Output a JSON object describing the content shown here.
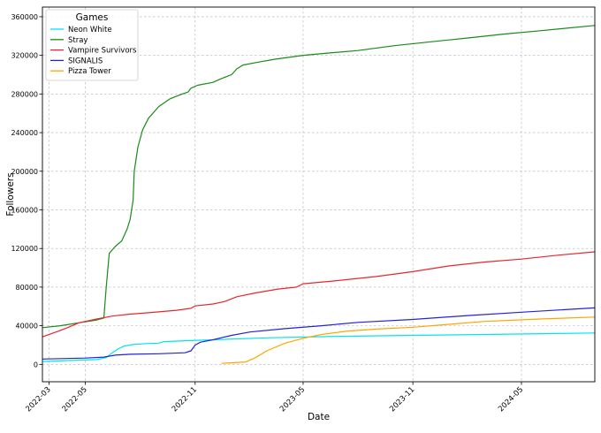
{
  "chart_data": {
    "type": "line",
    "xlabel": "Date",
    "ylabel": "Followers",
    "xlim": [
      "2022-02-18",
      "2024-09-01"
    ],
    "ylim": [
      -18000,
      370000
    ],
    "x_ticks": [
      "2022-03",
      "2022-05",
      "2022-11",
      "2023-05",
      "2023-11",
      "2024-05"
    ],
    "y_ticks": [
      "0",
      "40000",
      "80000",
      "120000",
      "160000",
      "200000",
      "240000",
      "280000",
      "320000",
      "360000"
    ],
    "grid": true,
    "legend": {
      "title": "Games",
      "placement": "top-left"
    },
    "series": [
      {
        "name": "Neon White",
        "color": "#00e5ee",
        "points": [
          [
            "2022-02-18",
            3000
          ],
          [
            "2022-04-01",
            4000
          ],
          [
            "2022-05-20",
            5000
          ],
          [
            "2022-06-05",
            7000
          ],
          [
            "2022-06-15",
            12000
          ],
          [
            "2022-06-25",
            16000
          ],
          [
            "2022-07-05",
            19000
          ],
          [
            "2022-07-20",
            20500
          ],
          [
            "2022-08-10",
            21500
          ],
          [
            "2022-09-01",
            22000
          ],
          [
            "2022-09-10",
            23500
          ],
          [
            "2022-10-15",
            24500
          ],
          [
            "2022-12-01",
            25500
          ],
          [
            "2023-03-01",
            27500
          ],
          [
            "2023-07-01",
            29000
          ],
          [
            "2023-11-01",
            30000
          ],
          [
            "2024-03-01",
            31000
          ],
          [
            "2024-07-01",
            32000
          ],
          [
            "2024-09-01",
            32500
          ]
        ]
      },
      {
        "name": "Stray",
        "color": "#1a8a1a",
        "points": [
          [
            "2022-02-18",
            38000
          ],
          [
            "2022-03-20",
            40000
          ],
          [
            "2022-04-20",
            43000
          ],
          [
            "2022-05-20",
            46000
          ],
          [
            "2022-06-01",
            48000
          ],
          [
            "2022-06-05",
            80000
          ],
          [
            "2022-06-10",
            115000
          ],
          [
            "2022-06-20",
            122000
          ],
          [
            "2022-07-01",
            128000
          ],
          [
            "2022-07-10",
            140000
          ],
          [
            "2022-07-15",
            150000
          ],
          [
            "2022-07-20",
            170000
          ],
          [
            "2022-07-22",
            200000
          ],
          [
            "2022-07-28",
            225000
          ],
          [
            "2022-08-05",
            243000
          ],
          [
            "2022-08-15",
            255000
          ],
          [
            "2022-09-01",
            267000
          ],
          [
            "2022-09-20",
            275000
          ],
          [
            "2022-10-10",
            280000
          ],
          [
            "2022-10-20",
            282000
          ],
          [
            "2022-10-25",
            286000
          ],
          [
            "2022-11-05",
            289000
          ],
          [
            "2022-12-01",
            292000
          ],
          [
            "2022-12-15",
            296000
          ],
          [
            "2023-01-01",
            300000
          ],
          [
            "2023-01-10",
            306000
          ],
          [
            "2023-01-20",
            310000
          ],
          [
            "2023-02-15",
            313000
          ],
          [
            "2023-03-15",
            316000
          ],
          [
            "2023-05-01",
            320000
          ],
          [
            "2023-06-15",
            322500
          ],
          [
            "2023-08-01",
            325000
          ],
          [
            "2023-10-01",
            330000
          ],
          [
            "2023-12-01",
            334000
          ],
          [
            "2024-02-01",
            338000
          ],
          [
            "2024-04-01",
            342000
          ],
          [
            "2024-06-01",
            345500
          ],
          [
            "2024-09-01",
            351000
          ]
        ]
      },
      {
        "name": "Vampire Survivors",
        "color": "#e8262e",
        "points": [
          [
            "2022-02-18",
            28500
          ],
          [
            "2022-03-15",
            34000
          ],
          [
            "2022-04-01",
            38000
          ],
          [
            "2022-04-20",
            43000
          ],
          [
            "2022-05-20",
            47000
          ],
          [
            "2022-06-15",
            50000
          ],
          [
            "2022-07-15",
            52000
          ],
          [
            "2022-08-15",
            53500
          ],
          [
            "2022-10-01",
            56000
          ],
          [
            "2022-10-25",
            58000
          ],
          [
            "2022-11-01",
            60500
          ],
          [
            "2022-12-01",
            62500
          ],
          [
            "2022-12-20",
            65000
          ],
          [
            "2023-01-10",
            70000
          ],
          [
            "2023-02-10",
            74000
          ],
          [
            "2023-03-20",
            78000
          ],
          [
            "2023-04-20",
            80000
          ],
          [
            "2023-05-01",
            83500
          ],
          [
            "2023-06-15",
            86000
          ],
          [
            "2023-09-01",
            91000
          ],
          [
            "2023-11-01",
            96000
          ],
          [
            "2024-01-01",
            102000
          ],
          [
            "2024-03-01",
            106000
          ],
          [
            "2024-05-01",
            109000
          ],
          [
            "2024-07-01",
            113000
          ],
          [
            "2024-09-01",
            116500
          ]
        ]
      },
      {
        "name": "SIGNALIS",
        "color": "#2222dd",
        "points": [
          [
            "2022-02-18",
            5500
          ],
          [
            "2022-05-01",
            6500
          ],
          [
            "2022-06-01",
            7500
          ],
          [
            "2022-06-20",
            9500
          ],
          [
            "2022-07-15",
            10500
          ],
          [
            "2022-09-01",
            11000
          ],
          [
            "2022-10-15",
            12000
          ],
          [
            "2022-10-25",
            14000
          ],
          [
            "2022-11-01",
            20000
          ],
          [
            "2022-11-10",
            23000
          ],
          [
            "2022-12-01",
            25500
          ],
          [
            "2023-01-01",
            30000
          ],
          [
            "2023-02-01",
            33500
          ],
          [
            "2023-04-01",
            37000
          ],
          [
            "2023-06-01",
            40000
          ],
          [
            "2023-08-01",
            43500
          ],
          [
            "2023-11-01",
            46500
          ],
          [
            "2024-02-01",
            50500
          ],
          [
            "2024-05-01",
            54000
          ],
          [
            "2024-09-01",
            58500
          ]
        ]
      },
      {
        "name": "Pizza Tower",
        "color": "#ffa500",
        "points": [
          [
            "2022-12-15",
            1000
          ],
          [
            "2023-01-25",
            2500
          ],
          [
            "2023-02-10",
            7000
          ],
          [
            "2023-03-01",
            14000
          ],
          [
            "2023-04-01",
            22000
          ],
          [
            "2023-05-01",
            27000
          ],
          [
            "2023-06-01",
            31000
          ],
          [
            "2023-07-15",
            34500
          ],
          [
            "2023-09-01",
            36500
          ],
          [
            "2023-11-01",
            38500
          ],
          [
            "2024-01-01",
            41500
          ],
          [
            "2024-03-01",
            44500
          ],
          [
            "2024-06-01",
            47000
          ],
          [
            "2024-09-01",
            49000
          ]
        ]
      }
    ]
  }
}
